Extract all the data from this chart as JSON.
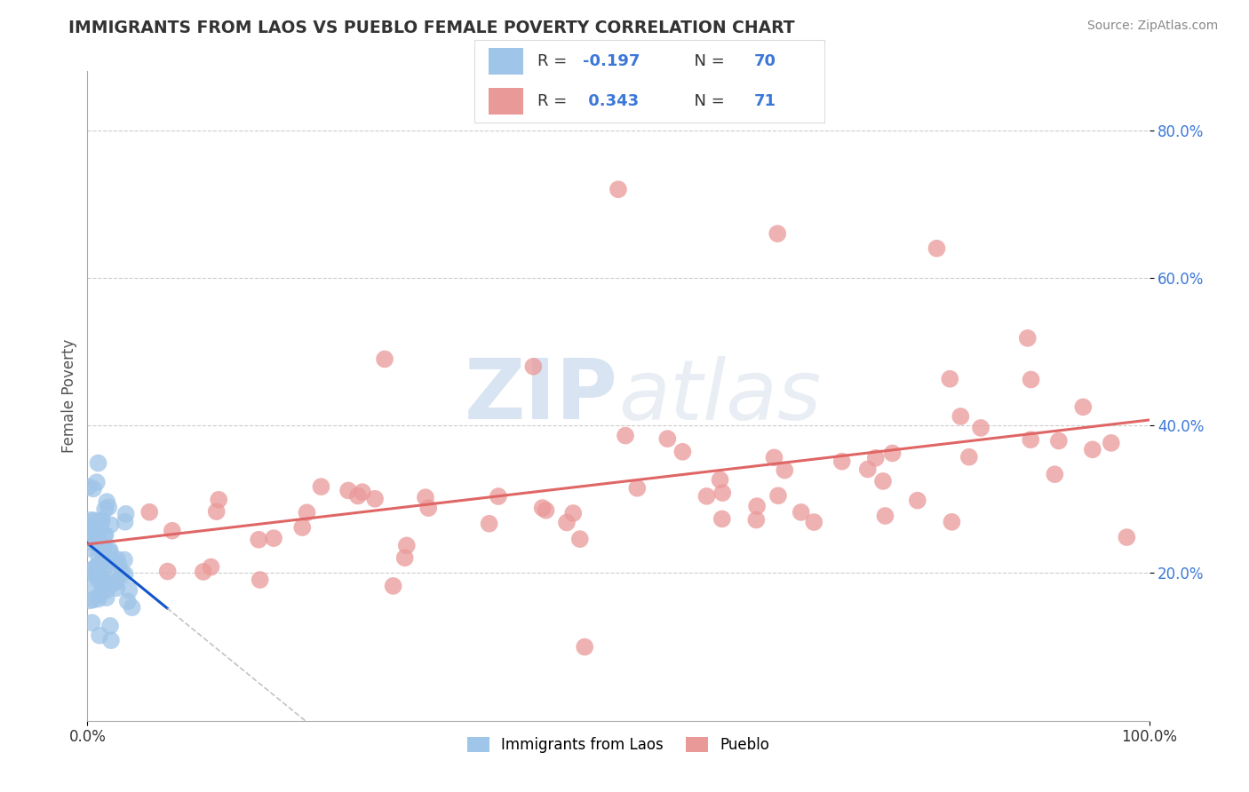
{
  "title": "IMMIGRANTS FROM LAOS VS PUEBLO FEMALE POVERTY CORRELATION CHART",
  "source": "Source: ZipAtlas.com",
  "ylabel": "Female Poverty",
  "legend_label1": "Immigrants from Laos",
  "legend_label2": "Pueblo",
  "R1": -0.197,
  "N1": 70,
  "R2": 0.343,
  "N2": 71,
  "color_blue": "#9fc5e8",
  "color_pink": "#ea9999",
  "color_blue_line": "#1155cc",
  "color_pink_line": "#e06666",
  "watermark_color": "#c9daf8",
  "background_color": "#ffffff",
  "grid_color": "#cccccc",
  "xlim": [
    0.0,
    1.0
  ],
  "ylim": [
    0.0,
    0.88
  ],
  "y_ticks": [
    0.2,
    0.4,
    0.6,
    0.8
  ],
  "y_tick_labels": [
    "20.0%",
    "40.0%",
    "60.0%",
    "80.0%"
  ],
  "x_ticks": [
    0.0,
    1.0
  ],
  "x_tick_labels": [
    "0.0%",
    "100.0%"
  ]
}
